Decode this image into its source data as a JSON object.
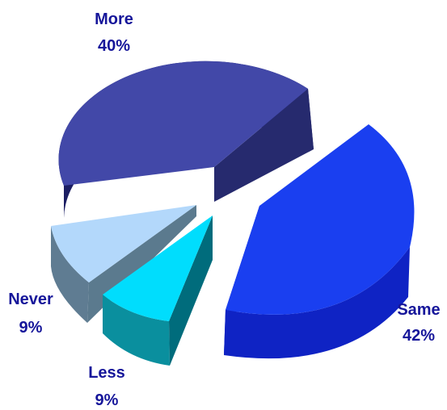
{
  "chart_data": {
    "type": "pie",
    "style": "3d-exploded",
    "title": "",
    "legend": "none",
    "slices": [
      {
        "label": "Same",
        "value": 42,
        "display": "42%",
        "color": "#1a3ff0"
      },
      {
        "label": "More",
        "value": 40,
        "display": "40%",
        "color": "#4248a8"
      },
      {
        "label": "Never",
        "value": 9,
        "display": "9%",
        "color": "#b3d8fb"
      },
      {
        "label": "Less",
        "value": 9,
        "display": "9%",
        "color": "#00ddfd"
      }
    ]
  }
}
